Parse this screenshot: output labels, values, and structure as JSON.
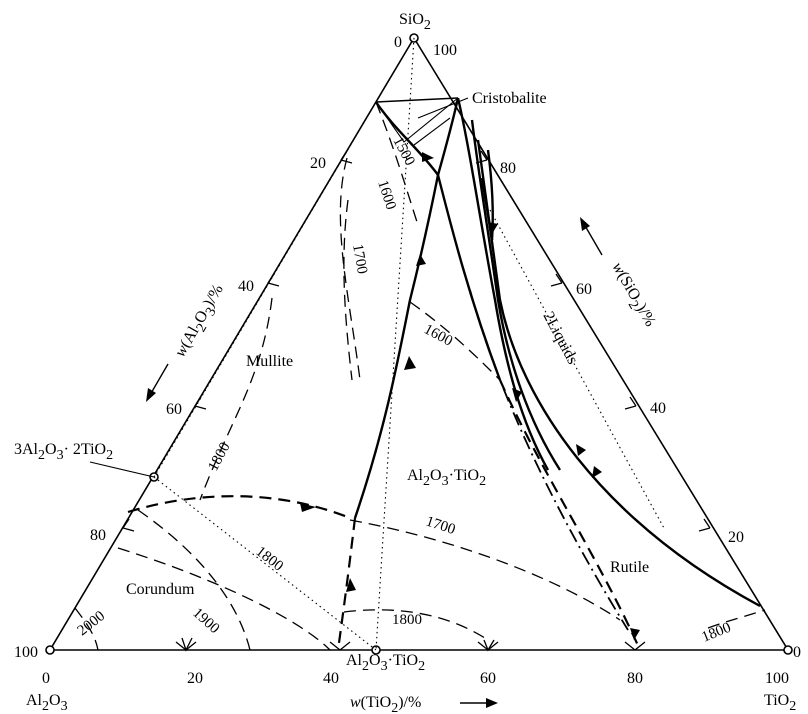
{
  "vertices": {
    "top": {
      "formula": "SiO",
      "sub": "2"
    },
    "left": {
      "formula": "Al",
      "sub1": "2",
      "mid": "O",
      "sub2": "3"
    },
    "right": {
      "formula": "TiO",
      "sub": "2"
    }
  },
  "axes": {
    "bottom": {
      "prefix": "w",
      "open": "(TiO",
      "sub": "2",
      "close": ")/%",
      "ticks": [
        "0",
        "20",
        "40",
        "60",
        "80",
        "100"
      ]
    },
    "left": {
      "prefix": "w",
      "open": "(Al",
      "sub1": "2",
      "mid": "O",
      "sub2": "3",
      "close": ")/%",
      "ticks": [
        "20",
        "40",
        "60",
        "80",
        "100"
      ]
    },
    "right": {
      "prefix": "w",
      "open": "(SiO",
      "sub": "2",
      "close": ")/%",
      "ticks": [
        "20",
        "40",
        "60",
        "80",
        "100"
      ]
    },
    "top_corner": {
      "left": "0",
      "right": "100"
    },
    "right_corner": "0"
  },
  "phases": {
    "cristobalite": "Cristobalite",
    "mullite": "Mullite",
    "corundum": "Corundum",
    "rutile": "Rutile",
    "two_liquids": "2Liquids",
    "al2o3_tio2_field": {
      "a": "Al",
      "b": "O",
      "c": "·TiO",
      "s1": "2",
      "s2": "3",
      "s3": "2"
    },
    "compound_bottom": {
      "a": "Al",
      "b": "O",
      "c": "·TiO",
      "s1": "2",
      "s2": "3",
      "s3": "2"
    },
    "compound_left": {
      "a": "3Al",
      "b": "O",
      "c": "· 2TiO",
      "s1": "2",
      "s2": "3",
      "s3": "2"
    }
  },
  "isotherms": [
    "1500",
    "1600",
    "1600",
    "1700",
    "1700",
    "1800",
    "1800",
    "1800",
    "1800",
    "1900",
    "2000"
  ]
}
